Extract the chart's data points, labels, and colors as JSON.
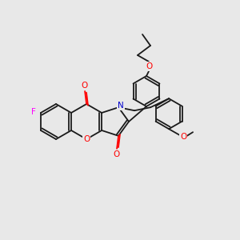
{
  "background_color": "#e8e8e8",
  "bond_color": "#1a1a1a",
  "atom_colors": {
    "O": "#ff0000",
    "N": "#0000cd",
    "F": "#ff00ff"
  },
  "figsize": [
    3.0,
    3.0
  ],
  "dpi": 100,
  "lw": 1.3,
  "r_hex": 22,
  "r_ph": 19
}
